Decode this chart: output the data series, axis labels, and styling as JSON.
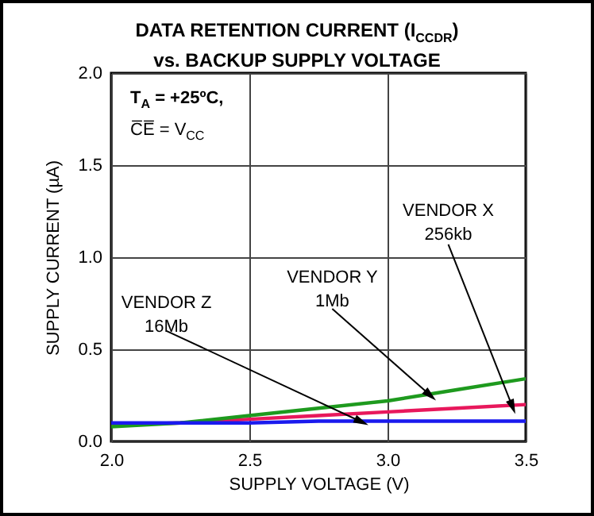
{
  "chart_data": {
    "type": "line",
    "title": "DATA RETENTION CURRENT (I$_{CCDR}$)",
    "subtitle": "vs. BACKUP SUPPLY VOLTAGE",
    "xlabel": "SUPPLY VOLTAGE (V)",
    "ylabel": "SUPPLY CURRENT (µA)",
    "annotations": [
      "T$_{A}$ = +25ºC,",
      "C̅E̅ = V$_{CC}$"
    ],
    "x": [
      2.0,
      2.25,
      2.5,
      2.75,
      3.0,
      3.25,
      3.5
    ],
    "series": [
      {
        "name": "VENDOR X\n256kb",
        "color": "#e8185c",
        "values": [
          0.09,
          0.1,
          0.12,
          0.14,
          0.16,
          0.18,
          0.2
        ]
      },
      {
        "name": "VENDOR Y\n1Mb",
        "color": "#1e9a1e",
        "values": [
          0.08,
          0.1,
          0.14,
          0.18,
          0.22,
          0.28,
          0.34
        ]
      },
      {
        "name": "VENDOR Z\n16Mb",
        "color": "#1a1aee",
        "values": [
          0.1,
          0.1,
          0.1,
          0.11,
          0.11,
          0.11,
          0.11
        ]
      }
    ],
    "xlim": [
      2.0,
      3.5
    ],
    "xticks": [
      {
        "value": 2,
        "label": "2.0"
      },
      {
        "value": 2.5,
        "label": "2.5"
      },
      {
        "value": 3,
        "label": "3.0"
      },
      {
        "value": 3.5,
        "label": "3.5"
      }
    ],
    "ylim": [
      0,
      2.0
    ],
    "yticks": [
      {
        "value": 0,
        "label": "0.0"
      },
      {
        "value": 0.5,
        "label": "0.5"
      },
      {
        "value": 1,
        "label": "1.0"
      },
      {
        "value": 1.5,
        "label": "1.5"
      },
      {
        "value": 2,
        "label": "2.0"
      }
    ],
    "grid": true,
    "legend": false,
    "marker": "none",
    "line_style": "solid"
  }
}
